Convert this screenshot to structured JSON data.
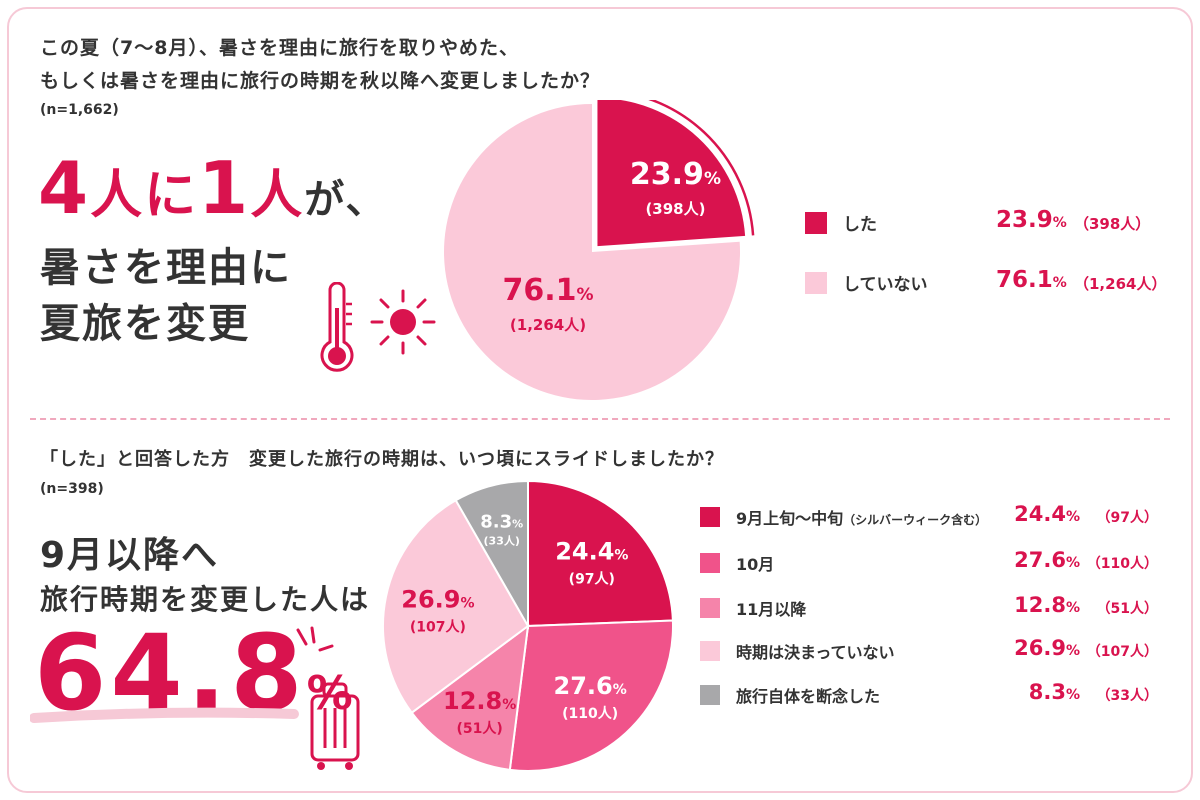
{
  "top": {
    "question_line1": "この夏（7〜8月）、暑さを理由に旅行を取りやめた、",
    "question_line2": "もしくは暑さを理由に旅行の時期を秋以降へ変更しましたか？",
    "n": "(n=1,662)",
    "headline_num1": "4",
    "headline_txt1": "人に",
    "headline_num2": "1",
    "headline_txt2": "人",
    "headline_txt3": "が、",
    "headline_line2": "暑さを理由に",
    "headline_line3": "夏旅を変更"
  },
  "bottom": {
    "question": "「した」と回答した方　変更した旅行の時期は、いつ頃にスライドしましたか？",
    "n": "(n=398)",
    "headline_line1": "9月以降へ",
    "headline_line2": "旅行時期を変更した人は",
    "big_value": "64.8",
    "big_unit": "%"
  },
  "chart_data": [
    {
      "type": "pie",
      "slices": [
        {
          "label": "した",
          "value": 23.9,
          "display": "23.9",
          "count": "(398人)",
          "color": "#d9134e"
        },
        {
          "label": "していない",
          "value": 76.1,
          "display": "76.1",
          "count": "(1,264人)",
          "color": "#fbc9d9"
        }
      ],
      "unit": "%"
    },
    {
      "type": "pie",
      "slices": [
        {
          "label": "9月上旬〜中旬",
          "label_note": "（シルバーウィーク含む）",
          "value": 24.4,
          "display": "24.4",
          "count": "(97人)",
          "color": "#d9134e"
        },
        {
          "label": "10月",
          "value": 27.6,
          "display": "27.6",
          "count": "(110人)",
          "color": "#f0538a"
        },
        {
          "label": "11月以降",
          "value": 12.8,
          "display": "12.8",
          "count": "(51人)",
          "color": "#f584aa"
        },
        {
          "label": "時期は決まっていない",
          "value": 26.9,
          "display": "26.9",
          "count": "(107人)",
          "color": "#fbc9d9"
        },
        {
          "label": "旅行自体を断念した",
          "value": 8.3,
          "display": "8.3",
          "count": "(33人)",
          "color": "#a8a8aa"
        }
      ],
      "unit": "%"
    }
  ],
  "legend_top_counts": [
    "（398人）",
    "（1,264人）"
  ],
  "legend_bottom_counts": [
    "（97人）",
    "（110人）",
    "（51人）",
    "（107人）",
    "（33人）"
  ],
  "icons": [
    "thermometer-icon",
    "sun-icon",
    "suitcase-icon",
    "sparkle-lines-icon"
  ]
}
